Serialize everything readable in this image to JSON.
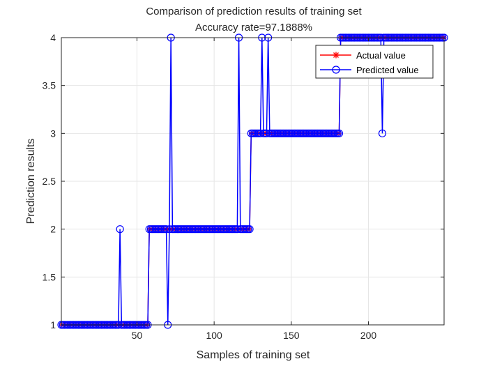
{
  "chart_data": {
    "type": "line",
    "title": "Comparison of prediction results of training set",
    "subtitle": "Accuracy rate=97.1888%",
    "xlabel": "Samples of training set",
    "ylabel": "Prediction results",
    "xlim": [
      1,
      249
    ],
    "ylim": [
      1,
      4
    ],
    "xticks": [
      50,
      100,
      150,
      200
    ],
    "yticks": [
      1,
      1.5,
      2,
      2.5,
      3,
      3.5,
      4
    ],
    "grid": true,
    "legend_position": "top-right",
    "colors": {
      "actual": "#ff0000",
      "predicted": "#0000ff",
      "grid": "#e6e6e6",
      "axis": "#262626"
    },
    "n_samples": 249,
    "series": [
      {
        "name": "Actual value",
        "marker": "asterisk",
        "segments": [
          {
            "from": 1,
            "to": 57,
            "value": 1
          },
          {
            "from": 58,
            "to": 123,
            "value": 2
          },
          {
            "from": 124,
            "to": 181,
            "value": 3
          },
          {
            "from": 182,
            "to": 249,
            "value": 4
          }
        ]
      },
      {
        "name": "Predicted value",
        "marker": "circle",
        "base": "Actual value",
        "overrides": [
          {
            "x": 39,
            "value": 2
          },
          {
            "x": 70,
            "value": 1
          },
          {
            "x": 72,
            "value": 4
          },
          {
            "x": 116,
            "value": 4
          },
          {
            "x": 131,
            "value": 4
          },
          {
            "x": 135,
            "value": 4
          },
          {
            "x": 209,
            "value": 3
          }
        ]
      }
    ]
  }
}
